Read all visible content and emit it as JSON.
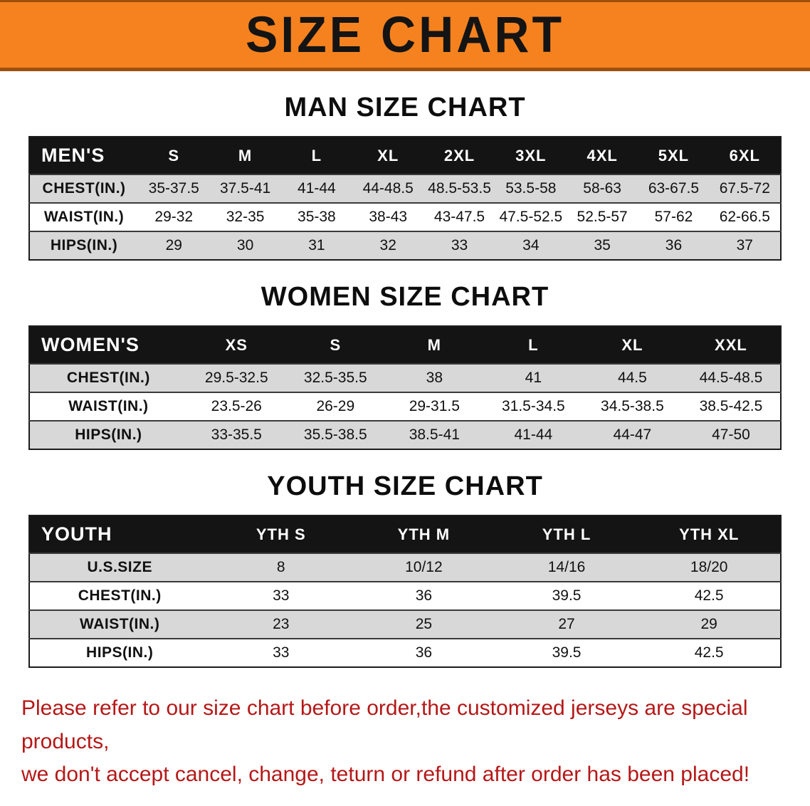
{
  "banner": {
    "title": "SIZE CHART",
    "bg_color": "#F6821F",
    "text_color": "#141414"
  },
  "chart_data": [
    {
      "type": "table",
      "title": "MAN SIZE CHART",
      "header": [
        "MEN'S",
        "S",
        "M",
        "L",
        "XL",
        "2XL",
        "3XL",
        "4XL",
        "5XL",
        "6XL"
      ],
      "rows": [
        [
          "CHEST(IN.)",
          "35-37.5",
          "37.5-41",
          "41-44",
          "44-48.5",
          "48.5-53.5",
          "53.5-58",
          "58-63",
          "63-67.5",
          "67.5-72"
        ],
        [
          "WAIST(IN.)",
          "29-32",
          "32-35",
          "35-38",
          "38-43",
          "43-47.5",
          "47.5-52.5",
          "52.5-57",
          "57-62",
          "62-66.5"
        ],
        [
          "HIPS(IN.)",
          "29",
          "30",
          "31",
          "32",
          "33",
          "34",
          "35",
          "36",
          "37"
        ]
      ]
    },
    {
      "type": "table",
      "title": "WOMEN SIZE CHART",
      "header": [
        "WOMEN'S",
        "XS",
        "S",
        "M",
        "L",
        "XL",
        "XXL"
      ],
      "rows": [
        [
          "CHEST(IN.)",
          "29.5-32.5",
          "32.5-35.5",
          "38",
          "41",
          "44.5",
          "44.5-48.5"
        ],
        [
          "WAIST(IN.)",
          "23.5-26",
          "26-29",
          "29-31.5",
          "31.5-34.5",
          "34.5-38.5",
          "38.5-42.5"
        ],
        [
          "HIPS(IN.)",
          "33-35.5",
          "35.5-38.5",
          "38.5-41",
          "41-44",
          "44-47",
          "47-50"
        ]
      ]
    },
    {
      "type": "table",
      "title": "YOUTH SIZE CHART",
      "header": [
        "YOUTH",
        "YTH S",
        "YTH M",
        "YTH L",
        "YTH XL"
      ],
      "rows": [
        [
          "U.S.SIZE",
          "8",
          "10/12",
          "14/16",
          "18/20"
        ],
        [
          "CHEST(IN.)",
          "33",
          "36",
          "39.5",
          "42.5"
        ],
        [
          "WAIST(IN.)",
          "23",
          "25",
          "27",
          "29"
        ],
        [
          "HIPS(IN.)",
          "33",
          "36",
          "39.5",
          "42.5"
        ]
      ]
    }
  ],
  "footer_note": {
    "color": "#B51818",
    "line1": "Please refer to our size chart before order,the customized jerseys are special products,",
    "line2": "we don't accept cancel, change, teturn or refund after order has been placed!"
  }
}
